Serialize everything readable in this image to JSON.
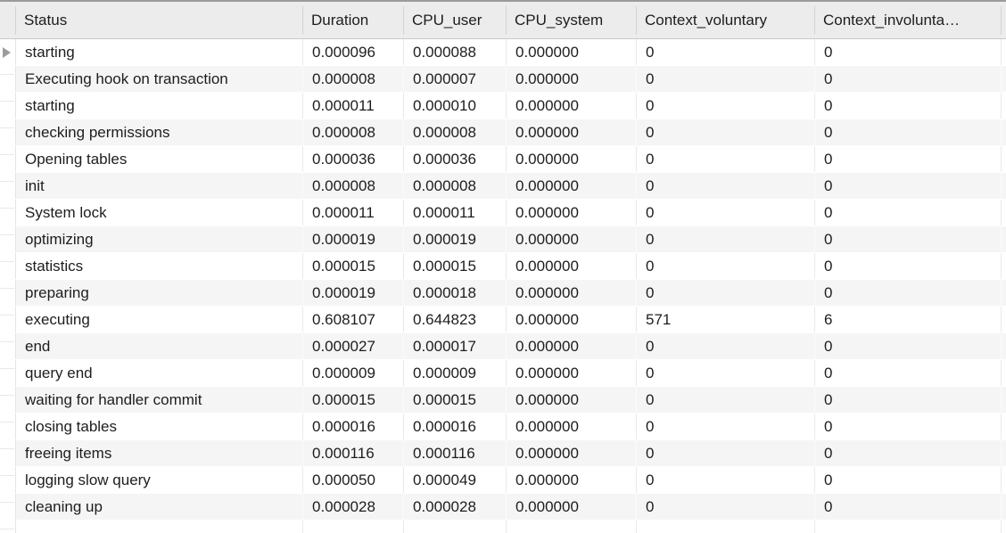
{
  "table": {
    "columns": [
      {
        "key": "status",
        "label": "Status"
      },
      {
        "key": "duration",
        "label": "Duration"
      },
      {
        "key": "cpu_user",
        "label": "CPU_user"
      },
      {
        "key": "cpu_system",
        "label": "CPU_system"
      },
      {
        "key": "context_voluntary",
        "label": "Context_voluntary"
      },
      {
        "key": "context_involuntary",
        "label": "Context_involunta…"
      }
    ],
    "rows": [
      {
        "status": "starting",
        "duration": "0.000096",
        "cpu_user": "0.000088",
        "cpu_system": "0.000000",
        "context_voluntary": "0",
        "context_involuntary": "0"
      },
      {
        "status": "Executing hook on transaction",
        "duration": "0.000008",
        "cpu_user": "0.000007",
        "cpu_system": "0.000000",
        "context_voluntary": "0",
        "context_involuntary": "0"
      },
      {
        "status": "starting",
        "duration": "0.000011",
        "cpu_user": "0.000010",
        "cpu_system": "0.000000",
        "context_voluntary": "0",
        "context_involuntary": "0"
      },
      {
        "status": "checking permissions",
        "duration": "0.000008",
        "cpu_user": "0.000008",
        "cpu_system": "0.000000",
        "context_voluntary": "0",
        "context_involuntary": "0"
      },
      {
        "status": "Opening tables",
        "duration": "0.000036",
        "cpu_user": "0.000036",
        "cpu_system": "0.000000",
        "context_voluntary": "0",
        "context_involuntary": "0"
      },
      {
        "status": "init",
        "duration": "0.000008",
        "cpu_user": "0.000008",
        "cpu_system": "0.000000",
        "context_voluntary": "0",
        "context_involuntary": "0"
      },
      {
        "status": "System lock",
        "duration": "0.000011",
        "cpu_user": "0.000011",
        "cpu_system": "0.000000",
        "context_voluntary": "0",
        "context_involuntary": "0"
      },
      {
        "status": "optimizing",
        "duration": "0.000019",
        "cpu_user": "0.000019",
        "cpu_system": "0.000000",
        "context_voluntary": "0",
        "context_involuntary": "0"
      },
      {
        "status": "statistics",
        "duration": "0.000015",
        "cpu_user": "0.000015",
        "cpu_system": "0.000000",
        "context_voluntary": "0",
        "context_involuntary": "0"
      },
      {
        "status": "preparing",
        "duration": "0.000019",
        "cpu_user": "0.000018",
        "cpu_system": "0.000000",
        "context_voluntary": "0",
        "context_involuntary": "0"
      },
      {
        "status": "executing",
        "duration": "0.608107",
        "cpu_user": "0.644823",
        "cpu_system": "0.000000",
        "context_voluntary": "571",
        "context_involuntary": "6"
      },
      {
        "status": "end",
        "duration": "0.000027",
        "cpu_user": "0.000017",
        "cpu_system": "0.000000",
        "context_voluntary": "0",
        "context_involuntary": "0"
      },
      {
        "status": "query end",
        "duration": "0.000009",
        "cpu_user": "0.000009",
        "cpu_system": "0.000000",
        "context_voluntary": "0",
        "context_involuntary": "0"
      },
      {
        "status": "waiting for handler commit",
        "duration": "0.000015",
        "cpu_user": "0.000015",
        "cpu_system": "0.000000",
        "context_voluntary": "0",
        "context_involuntary": "0"
      },
      {
        "status": "closing tables",
        "duration": "0.000016",
        "cpu_user": "0.000016",
        "cpu_system": "0.000000",
        "context_voluntary": "0",
        "context_involuntary": "0"
      },
      {
        "status": "freeing items",
        "duration": "0.000116",
        "cpu_user": "0.000116",
        "cpu_system": "0.000000",
        "context_voluntary": "0",
        "context_involuntary": "0"
      },
      {
        "status": "logging slow query",
        "duration": "0.000050",
        "cpu_user": "0.000049",
        "cpu_system": "0.000000",
        "context_voluntary": "0",
        "context_involuntary": "0"
      },
      {
        "status": "cleaning up",
        "duration": "0.000028",
        "cpu_user": "0.000028",
        "cpu_system": "0.000000",
        "context_voluntary": "0",
        "context_involuntary": "0"
      }
    ]
  },
  "selection": {
    "pointer_row_index": 0,
    "pointer_icon": "row-pointer-arrow"
  },
  "colors": {
    "top_border": "#9b9b9b",
    "header_bg": "#ececec",
    "header_border": "#c9c9c9",
    "header_separator": "#d3d3d3",
    "row_alt_bg": "#f5f5f6",
    "grid_line_on_white": "#e9e9e9",
    "grid_line_on_gray": "#fbfbfb",
    "gutter_line": "#e9e9e9",
    "text": "#1d1d1f",
    "pointer_arrow": "#9c9c9c"
  }
}
